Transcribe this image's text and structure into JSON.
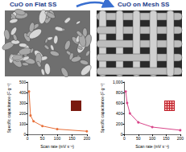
{
  "header": {
    "left_title": "CuO on Flat SS",
    "right_title": "CuO on Mesh SS"
  },
  "chart_data": [
    {
      "type": "line",
      "x_label": "Scan rate (mV s⁻¹)",
      "y_label": "Specific capacitance (F g⁻¹)",
      "x": [
        5,
        10,
        20,
        50,
        100,
        200
      ],
      "values": [
        410,
        180,
        125,
        80,
        50,
        30
      ],
      "color": "#e8703a",
      "marker": "circle",
      "xlim": [
        0,
        200
      ],
      "xticks": [
        0,
        50,
        100,
        150,
        200
      ],
      "ylim": [
        0,
        500
      ],
      "yticks": [
        0,
        100,
        200,
        300,
        400,
        500
      ],
      "grid": false
    },
    {
      "type": "line",
      "x_label": "Scan rate (mV s⁻¹)",
      "y_label": "Specific capacitance (F g⁻¹)",
      "x": [
        5,
        10,
        20,
        50,
        100,
        200
      ],
      "values": [
        820,
        600,
        400,
        230,
        140,
        80
      ],
      "color": "#d9468a",
      "marker": "circle",
      "xlim": [
        0,
        200
      ],
      "xticks": [
        0,
        50,
        100,
        150,
        200
      ],
      "ylim": [
        0,
        1000
      ],
      "yticks": [
        0,
        200,
        400,
        600,
        800,
        1000
      ],
      "grid": false
    }
  ]
}
